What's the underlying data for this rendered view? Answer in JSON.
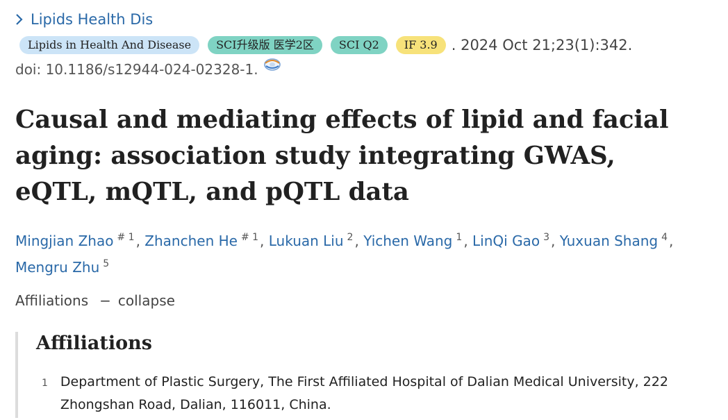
{
  "journal": {
    "name": "Lipids Health Dis",
    "chevron_icon": "chevron-right-icon"
  },
  "badges": {
    "journal_full": "Lipids in Health And Disease",
    "sci_rank": "SCI升级版 医学2区",
    "sci_quartile": "SCI Q2",
    "impact_factor": "IF 3.9"
  },
  "citation": {
    "date_volume": ". 2024 Oct 21;23(1):342.",
    "doi": "doi: 10.1186/s12944-024-02328-1.",
    "doi_icon": "crossref-icon"
  },
  "article": {
    "title": "Causal and mediating effects of lipid and facial aging: association study integrating GWAS, eQTL, mQTL, and pQTL data"
  },
  "authors": [
    {
      "name": "Mingjian Zhao",
      "sup": "# 1"
    },
    {
      "name": "Zhanchen He",
      "sup": "# 1"
    },
    {
      "name": "Lukuan Liu",
      "sup": "2"
    },
    {
      "name": "Yichen Wang",
      "sup": "1"
    },
    {
      "name": "LinQi Gao",
      "sup": "3"
    },
    {
      "name": "Yuxuan Shang",
      "sup": "4"
    },
    {
      "name": "Mengru Zhu",
      "sup": "5"
    }
  ],
  "affiliations_toggle": {
    "label": "Affiliations",
    "dash": "−",
    "action": "collapse"
  },
  "affiliations": {
    "heading": "Affiliations",
    "items": [
      {
        "num": "1",
        "text": "Department of Plastic Surgery, The First Affiliated Hospital of Dalian Medical University, 222 Zhongshan Road, Dalian, 116011, China."
      }
    ]
  },
  "colors": {
    "link": "#2a69a8",
    "badge_journal": "#cce4f7",
    "badge_teal": "#7fd3c3",
    "badge_if": "#f7e27a"
  }
}
